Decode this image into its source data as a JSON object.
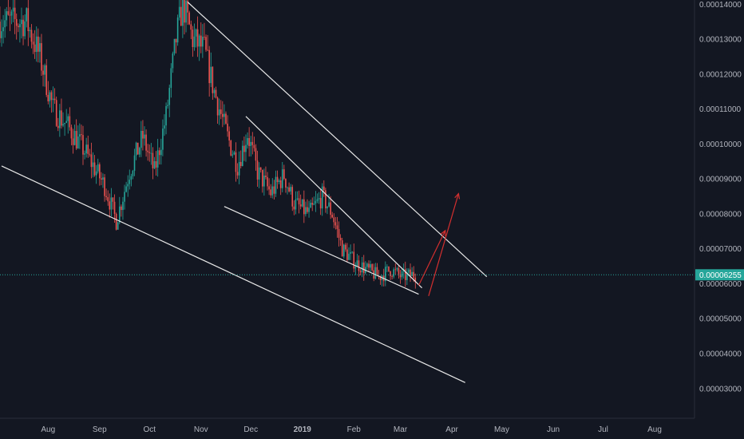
{
  "chart_data": {
    "type": "candlestick",
    "y_axis": {
      "ticks": [
        "0.00014000",
        "0.00013000",
        "0.00012000",
        "0.00011000",
        "0.00010000",
        "0.00009000",
        "0.00008000",
        "0.00007000",
        "0.00006000",
        "0.00005000",
        "0.00004000",
        "0.00003000"
      ],
      "range": [
        2.15e-05,
        0.0001412
      ]
    },
    "x_axis": {
      "ticks": [
        {
          "label": "Aug",
          "date": "2018-08-01"
        },
        {
          "label": "Sep",
          "date": "2018-09-01"
        },
        {
          "label": "Oct",
          "date": "2018-10-01"
        },
        {
          "label": "Nov",
          "date": "2018-11-01"
        },
        {
          "label": "Dec",
          "date": "2018-12-01"
        },
        {
          "label": "2019",
          "date": "2019-01-01",
          "emphasis": true
        },
        {
          "label": "Feb",
          "date": "2019-02-01"
        },
        {
          "label": "Mar",
          "date": "2019-03-01"
        },
        {
          "label": "Apr",
          "date": "2019-04-01"
        },
        {
          "label": "May",
          "date": "2019-05-01"
        },
        {
          "label": "Jun",
          "date": "2019-06-01"
        },
        {
          "label": "Jul",
          "date": "2019-07-01"
        },
        {
          "label": "Aug",
          "date": "2019-08-01"
        }
      ]
    },
    "current_price": {
      "label": "0.00006255",
      "value": 6.255e-05
    },
    "key_prices": [
      {
        "date": "2018-07-20",
        "price": 0.000135
      },
      {
        "date": "2018-07-28",
        "price": 0.000125
      },
      {
        "date": "2018-08-05",
        "price": 0.00011
      },
      {
        "date": "2018-08-14",
        "price": 0.000105
      },
      {
        "date": "2018-08-24",
        "price": 9.8e-05
      },
      {
        "date": "2018-09-05",
        "price": 8.8e-05
      },
      {
        "date": "2018-09-12",
        "price": 7.8e-05
      },
      {
        "date": "2018-09-20",
        "price": 9.2e-05
      },
      {
        "date": "2018-09-28",
        "price": 0.000102
      },
      {
        "date": "2018-10-05",
        "price": 9.2e-05
      },
      {
        "date": "2018-10-12",
        "price": 0.000108
      },
      {
        "date": "2018-10-18",
        "price": 0.00013
      },
      {
        "date": "2018-10-22",
        "price": 0.00014
      },
      {
        "date": "2018-10-28",
        "price": 0.00013
      },
      {
        "date": "2018-11-04",
        "price": 0.000127
      },
      {
        "date": "2018-11-10",
        "price": 0.000115
      },
      {
        "date": "2018-11-18",
        "price": 0.000102
      },
      {
        "date": "2018-11-24",
        "price": 9.4e-05
      },
      {
        "date": "2018-11-30",
        "price": 0.000103
      },
      {
        "date": "2018-12-06",
        "price": 9.2e-05
      },
      {
        "date": "2018-12-14",
        "price": 8.6e-05
      },
      {
        "date": "2018-12-22",
        "price": 9.1e-05
      },
      {
        "date": "2018-12-28",
        "price": 8.3e-05
      },
      {
        "date": "2019-01-06",
        "price": 8e-05
      },
      {
        "date": "2019-01-14",
        "price": 8.5e-05
      },
      {
        "date": "2019-01-20",
        "price": 8e-05
      },
      {
        "date": "2019-01-26",
        "price": 7e-05
      },
      {
        "date": "2019-02-03",
        "price": 6.6e-05
      },
      {
        "date": "2019-02-10",
        "price": 6.4e-05
      },
      {
        "date": "2019-02-17",
        "price": 6.2e-05
      },
      {
        "date": "2019-02-24",
        "price": 6.4e-05
      },
      {
        "date": "2019-03-03",
        "price": 6.2e-05
      },
      {
        "date": "2019-03-10",
        "price": 6.26e-05
      }
    ],
    "candle_colors": {
      "up": "#26a69a",
      "down": "#ef5350"
    },
    "drawings": {
      "color_lines": "#e8e8e8",
      "color_arrows": "#d32f2f",
      "trendlines": [
        {
          "from": {
            "date": "2018-10-24",
            "price": 0.0001406
          },
          "to": {
            "date": "2019-04-22",
            "price": 6.2e-05
          }
        },
        {
          "from": {
            "date": "2018-11-28",
            "price": 0.0001079
          },
          "to": {
            "date": "2019-03-14",
            "price": 5.88e-05
          }
        },
        {
          "from": {
            "date": "2018-11-15",
            "price": 8.21e-05
          },
          "to": {
            "date": "2019-03-12",
            "price": 5.7e-05
          }
        },
        {
          "from": {
            "date": "2018-07-04",
            "price": 9.37e-05
          },
          "to": {
            "date": "2019-04-09",
            "price": 3.17e-05
          }
        }
      ],
      "arrows": [
        {
          "from": {
            "date": "2019-03-12",
            "price": 5.95e-05
          },
          "to": {
            "date": "2019-03-28",
            "price": 7.52e-05
          }
        },
        {
          "from": {
            "date": "2019-03-18",
            "price": 5.65e-05
          },
          "to": {
            "date": "2019-04-05",
            "price": 8.58e-05
          }
        }
      ]
    },
    "background": "#131722",
    "grid": false
  }
}
